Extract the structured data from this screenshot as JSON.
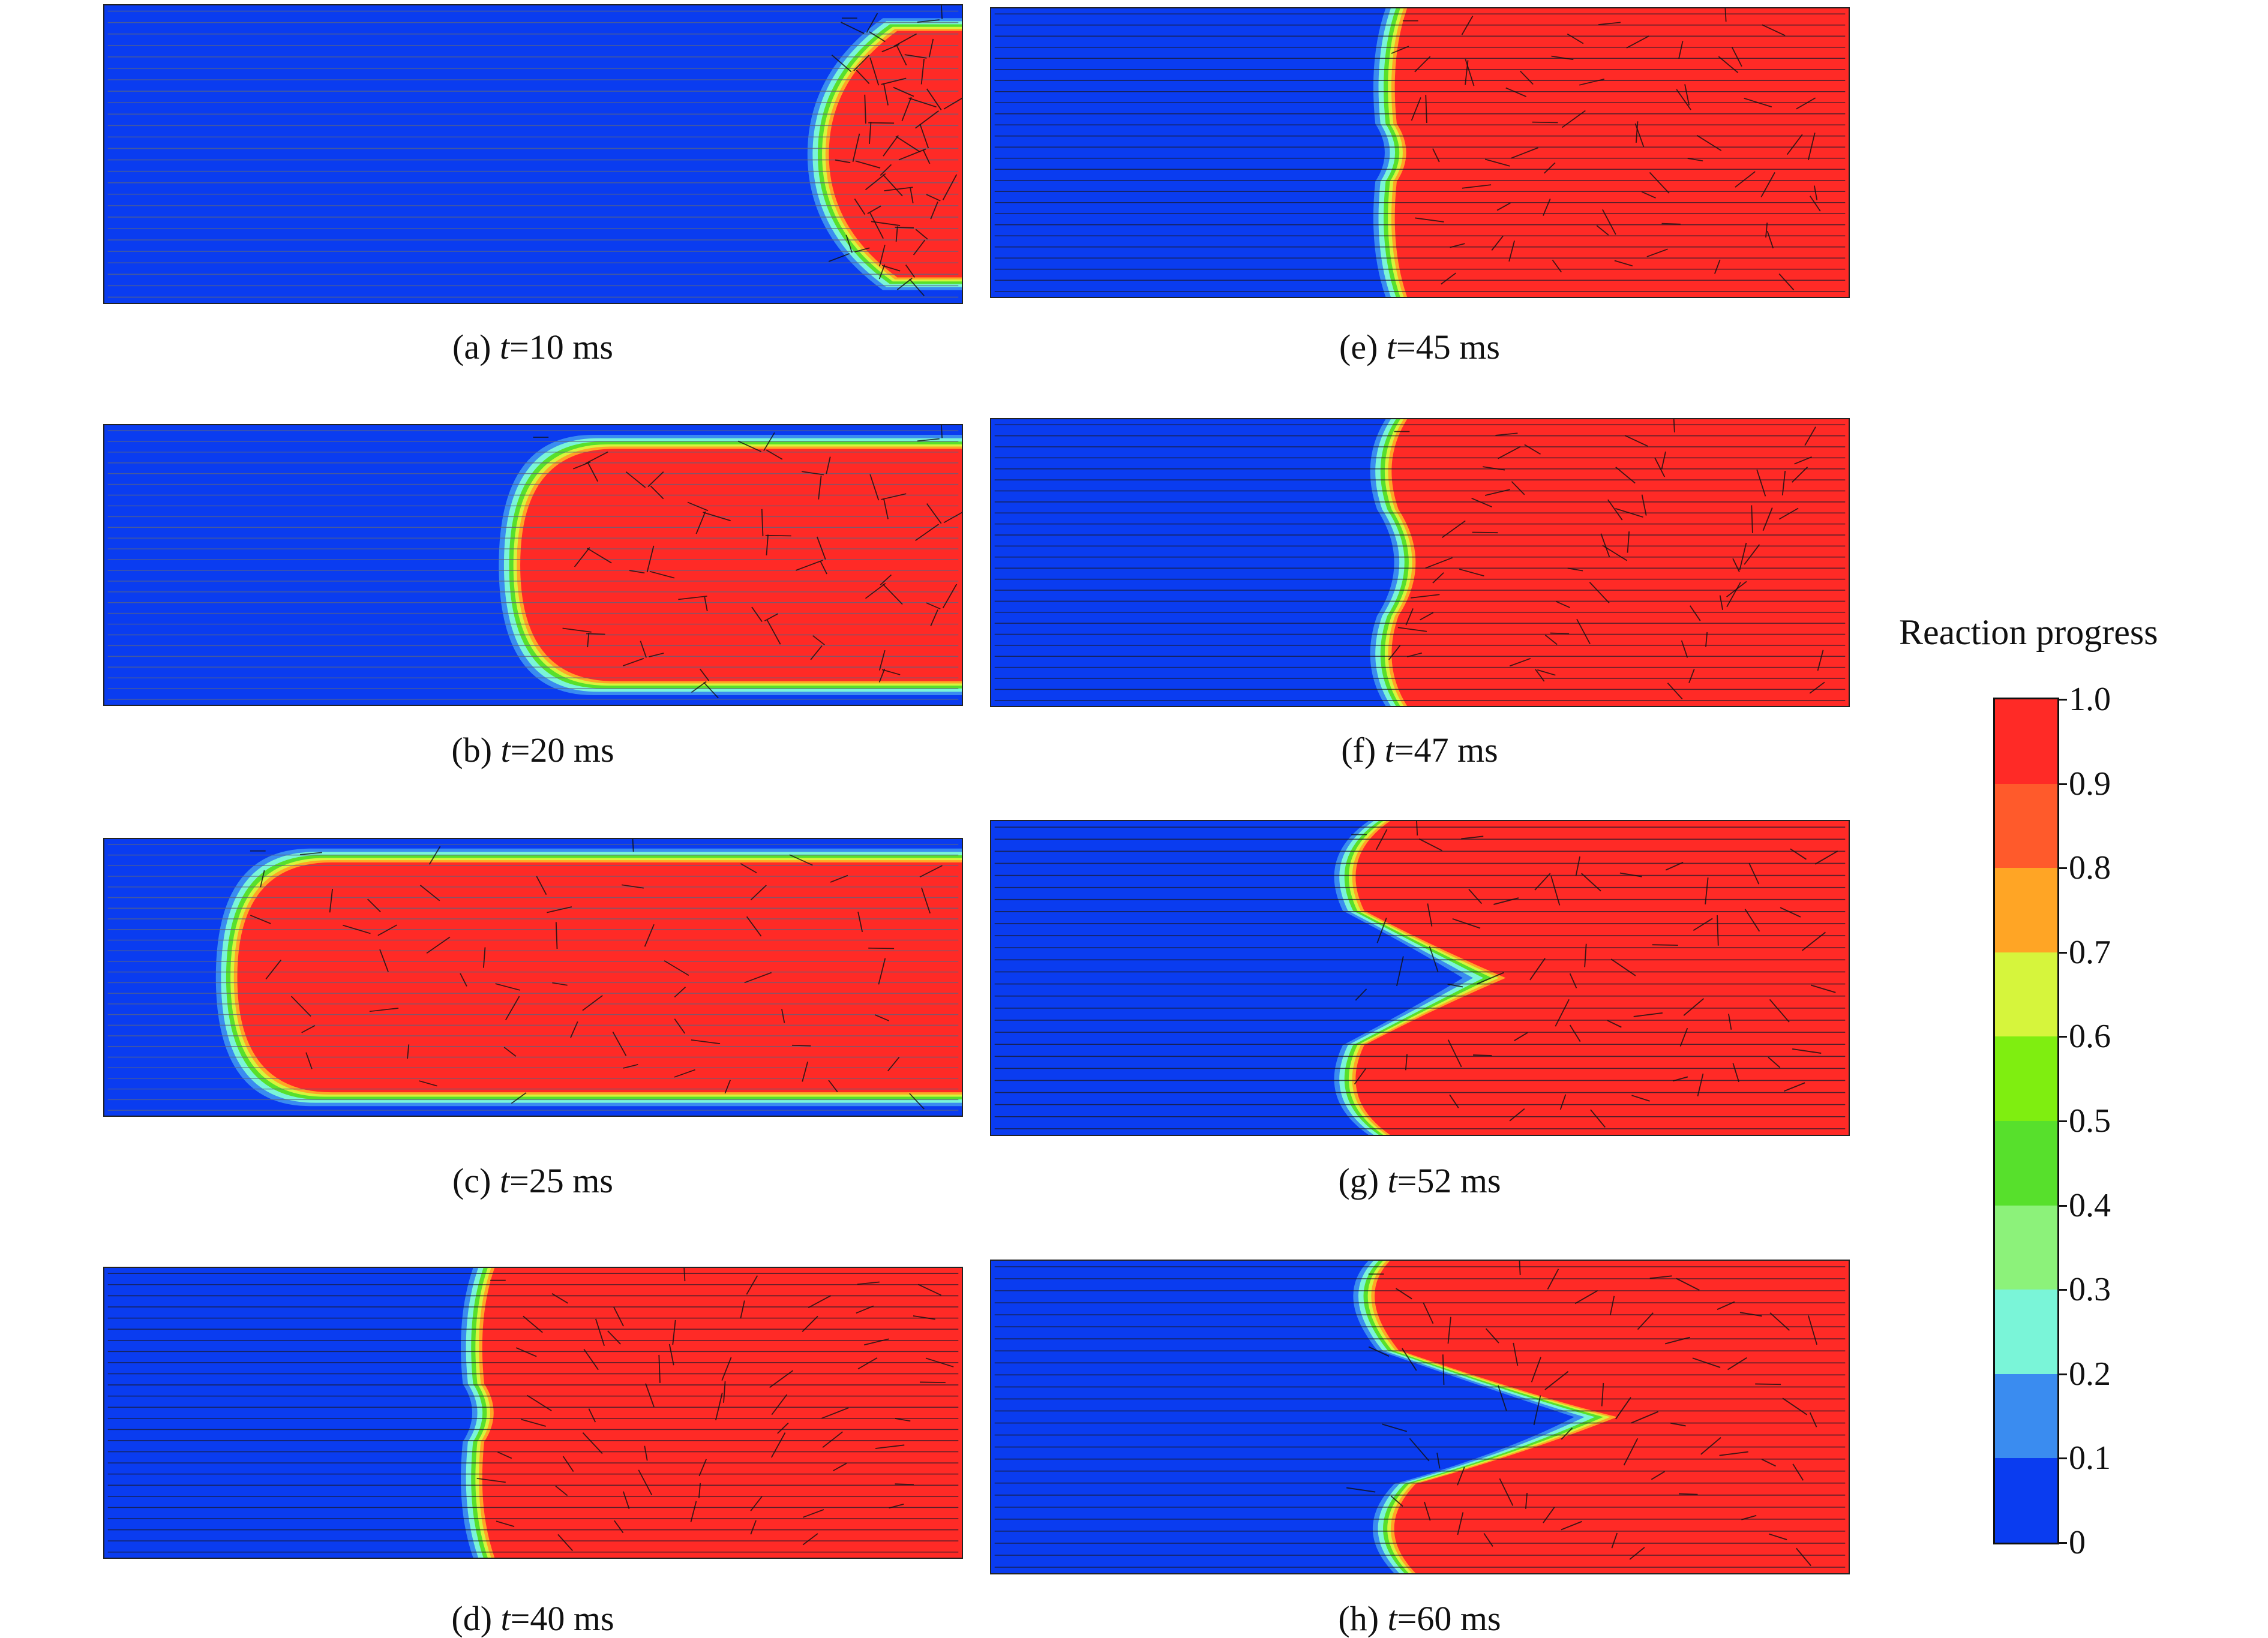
{
  "panels": [
    {
      "id": "a",
      "prefix": "(a) ",
      "tvar": "t",
      "rest": "=10 ms",
      "front": 0.82,
      "shape": "cap"
    },
    {
      "id": "b",
      "prefix": "(b) ",
      "tvar": "t",
      "rest": "=20 ms",
      "front": 0.46,
      "shape": "bullet"
    },
    {
      "id": "c",
      "prefix": "(c) ",
      "tvar": "t",
      "rest": "=25 ms",
      "front": 0.13,
      "shape": "bullet"
    },
    {
      "id": "d",
      "prefix": "(d) ",
      "tvar": "t",
      "rest": "=40 ms",
      "front": 0.41,
      "shape": "flat"
    },
    {
      "id": "e",
      "prefix": "(e) ",
      "tvar": "t",
      "rest": "=45 ms",
      "front": 0.44,
      "shape": "flat"
    },
    {
      "id": "f",
      "prefix": "(f) ",
      "tvar": "t",
      "rest": "=47 ms",
      "front": 0.43,
      "shape": "wavy"
    },
    {
      "id": "g",
      "prefix": "(g) ",
      "tvar": "t",
      "rest": "=52 ms",
      "front": 0.38,
      "shape": "tulip"
    },
    {
      "id": "h",
      "prefix": "(h) ",
      "tvar": "t",
      "rest": "=60 ms",
      "front": 0.4,
      "shape": "tulip-late"
    }
  ],
  "colorbar": {
    "title": "Reaction progress",
    "ticks": [
      "1.0",
      "0.9",
      "0.8",
      "0.7",
      "0.6",
      "0.5",
      "0.4",
      "0.3",
      "0.2",
      "0.1",
      "0"
    ],
    "colors": [
      "#0a3cf0",
      "#3a8cf0",
      "#7af5d8",
      "#8cf27a",
      "#57e02c",
      "#7fee10",
      "#d6f53c",
      "#ffa525",
      "#ff5a2b",
      "#ff2a26"
    ]
  }
}
